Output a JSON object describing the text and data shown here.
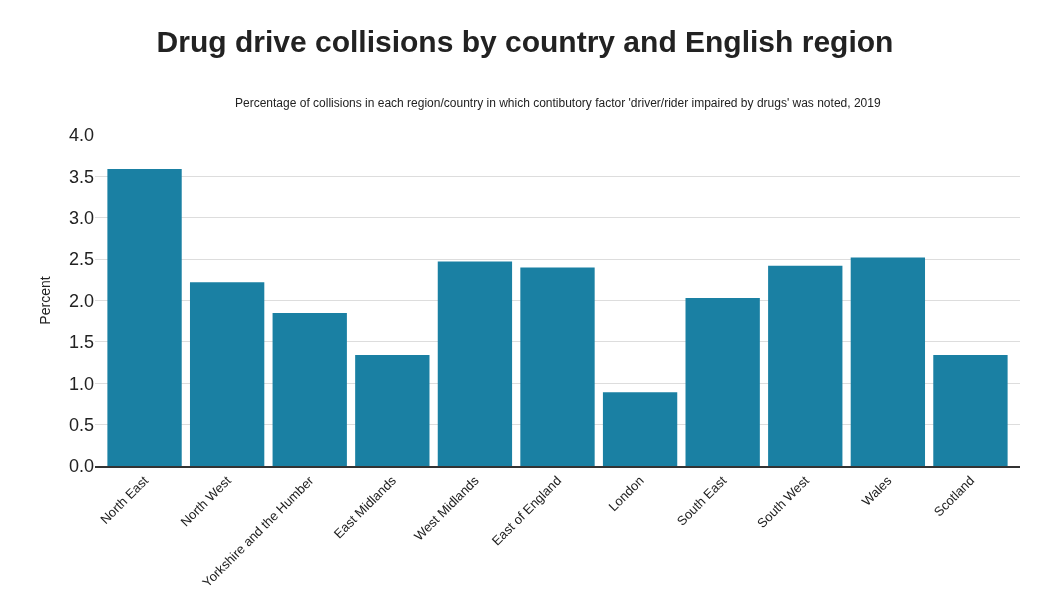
{
  "chart_data": {
    "type": "bar",
    "title": "Drug drive collisions by country and English region",
    "subtitle": "Percentage of collisions in each region/country in which contibutory factor 'driver/rider impaired by drugs' was noted, 2019",
    "ylabel": "Percent",
    "categories": [
      "North East",
      "North West",
      "Yorkshire and the Humber",
      "East Midlands",
      "West Midlands",
      "East of England",
      "London",
      "South East",
      "South West",
      "Wales",
      "Scotland"
    ],
    "values": [
      3.59,
      2.22,
      1.85,
      1.34,
      2.47,
      2.4,
      0.89,
      2.03,
      2.42,
      2.52,
      1.34
    ],
    "color": "#1a80a3",
    "ylim": [
      0,
      4.0
    ],
    "yticks": [
      {
        "value": 0,
        "label": "0.0"
      },
      {
        "value": 0.5,
        "label": "0.5"
      },
      {
        "value": 1.0,
        "label": "1.0"
      },
      {
        "value": 1.5,
        "label": "1.5"
      },
      {
        "value": 2.0,
        "label": "2.0"
      },
      {
        "value": 2.5,
        "label": "2.5"
      },
      {
        "value": 3.0,
        "label": "3.0"
      },
      {
        "value": 3.5,
        "label": "3.5"
      },
      {
        "value": 4.0,
        "label": "4.0"
      }
    ],
    "grid": "y"
  }
}
